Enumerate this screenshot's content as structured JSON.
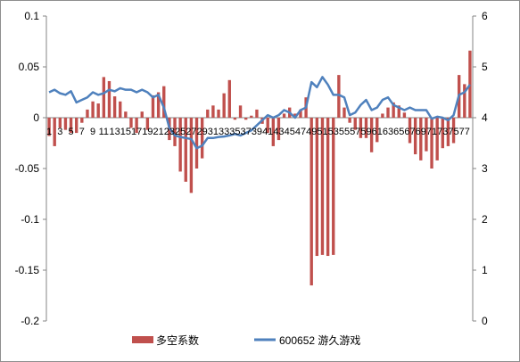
{
  "chart_data": {
    "type": "bar+line",
    "series": [
      {
        "name": "多空系数",
        "kind": "bar",
        "axis": "left",
        "color": "#c0504d",
        "values": [
          -0.018,
          -0.028,
          -0.01,
          -0.012,
          -0.015,
          -0.015,
          -0.005,
          0.008,
          0.016,
          0.014,
          0.04,
          0.036,
          0.021,
          0.016,
          0.006,
          -0.01,
          -0.015,
          0.006,
          -0.012,
          0.022,
          0.025,
          0.031,
          -0.022,
          -0.028,
          -0.053,
          -0.063,
          -0.074,
          -0.05,
          -0.04,
          0.008,
          0.012,
          0.008,
          0.024,
          0.037,
          -0.002,
          0.012,
          -0.002,
          0.002,
          0.008,
          -0.006,
          -0.015,
          -0.028,
          -0.022,
          0.004,
          0.01,
          0.004,
          0.008,
          0.02,
          -0.165,
          -0.136,
          -0.135,
          -0.136,
          -0.135,
          0.042,
          0.01,
          -0.005,
          -0.012,
          -0.02,
          -0.02,
          -0.034,
          -0.024,
          0.004,
          0.01,
          0.015,
          0.012,
          0.005,
          -0.025,
          -0.036,
          -0.042,
          -0.033,
          -0.05,
          -0.042,
          -0.03,
          -0.028,
          -0.025,
          0.042,
          0.033,
          0.066
        ]
      },
      {
        "name": "600652 游久游戏",
        "kind": "line",
        "axis": "right",
        "color": "#4f81bd",
        "values": [
          4.5,
          4.55,
          4.48,
          4.45,
          4.52,
          4.3,
          4.35,
          4.4,
          4.5,
          4.45,
          4.48,
          4.55,
          4.52,
          4.58,
          4.55,
          4.55,
          4.5,
          4.55,
          4.5,
          4.4,
          4.45,
          4.2,
          3.8,
          3.65,
          3.62,
          3.6,
          3.58,
          3.4,
          3.45,
          3.6,
          3.6,
          3.62,
          3.63,
          3.65,
          3.68,
          3.65,
          3.7,
          3.75,
          3.85,
          3.95,
          4.05,
          4.0,
          4.05,
          4.15,
          4.1,
          4.0,
          4.15,
          4.2,
          4.7,
          4.6,
          4.8,
          4.65,
          4.45,
          4.45,
          4.4,
          4.05,
          4.1,
          4.25,
          4.35,
          4.15,
          4.2,
          4.35,
          4.4,
          4.25,
          4.2,
          4.15,
          4.2,
          4.15,
          4.15,
          4.15,
          3.98,
          4.02,
          4.0,
          3.95,
          4.05,
          4.45,
          4.5,
          4.65
        ]
      }
    ],
    "x_tick_labels": [
      "1",
      "3",
      "5",
      "7",
      "9",
      "11",
      "13",
      "15",
      "17",
      "19",
      "21",
      "23",
      "25",
      "27",
      "29",
      "31",
      "33",
      "35",
      "37",
      "39",
      "41",
      "43",
      "45",
      "47",
      "49",
      "51",
      "53",
      "55",
      "57",
      "59",
      "61",
      "63",
      "65",
      "67",
      "69",
      "71",
      "73",
      "75",
      "77"
    ],
    "y_left": {
      "min": -0.2,
      "max": 0.1,
      "ticks": [
        "0.1",
        "0.05",
        "0",
        "-0.05",
        "-0.1",
        "-0.15",
        "-0.2"
      ]
    },
    "y_right": {
      "min": 0,
      "max": 6,
      "ticks": [
        "6",
        "5",
        "4",
        "3",
        "2",
        "1",
        "0"
      ]
    },
    "legend_position": "bottom",
    "grid": false
  }
}
